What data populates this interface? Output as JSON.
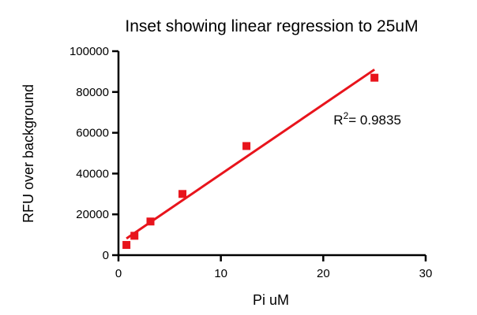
{
  "chart_data": {
    "type": "scatter",
    "title": "Inset showing linear regression to 25uM",
    "xlabel": "Pi uM",
    "ylabel": "RFU over background",
    "xlim": [
      0,
      30
    ],
    "ylim": [
      0,
      100000
    ],
    "x_ticks": [
      0,
      10,
      20,
      30
    ],
    "y_ticks": [
      0,
      20000,
      40000,
      60000,
      80000,
      100000
    ],
    "grid": false,
    "legend": "none",
    "series": [
      {
        "color": "#e8141c",
        "marker": "square",
        "points": [
          {
            "x": 0.78,
            "y": 5000
          },
          {
            "x": 1.56,
            "y": 9500
          },
          {
            "x": 3.125,
            "y": 16500
          },
          {
            "x": 6.25,
            "y": 30000
          },
          {
            "x": 12.5,
            "y": 53500
          },
          {
            "x": 25,
            "y": 87000
          }
        ]
      }
    ],
    "regression": {
      "color": "#e8141c",
      "x_start": 0.78,
      "x_end": 25,
      "slope": 3420,
      "intercept": 5500
    },
    "annotation": {
      "r2_prefix": "R",
      "r2_superscript": "2",
      "r2_value": "= 0.9835",
      "x": 21,
      "y": 64000
    }
  }
}
